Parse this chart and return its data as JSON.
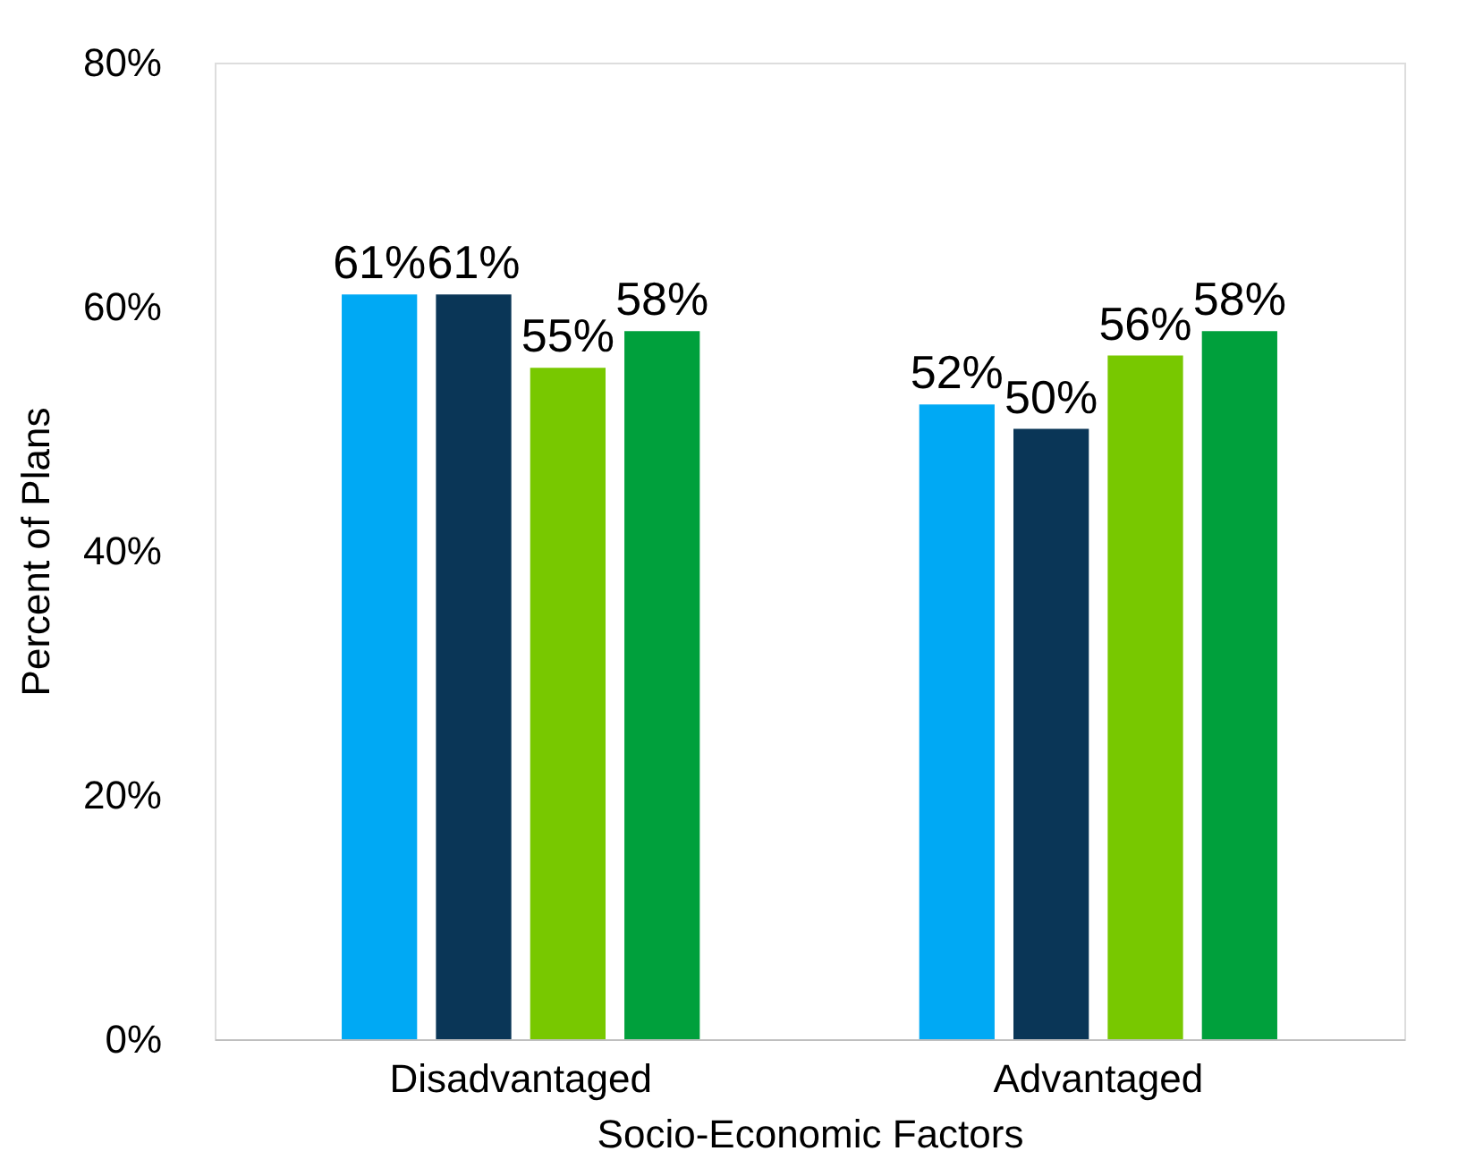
{
  "chart_data": {
    "type": "bar",
    "xlabel": "Socio-Economic Factors",
    "ylabel": "Percent of Plans",
    "categories": [
      "Disadvantaged",
      "Advantaged"
    ],
    "series": [
      {
        "color": "#00a9f4",
        "values": [
          61,
          52
        ],
        "value_labels": [
          "61%",
          "52%"
        ]
      },
      {
        "color": "#0a3657",
        "values": [
          61,
          50
        ],
        "value_labels": [
          "61%",
          "50%"
        ]
      },
      {
        "color": "#78c800",
        "values": [
          55,
          56
        ],
        "value_labels": [
          "55%",
          "56%"
        ]
      },
      {
        "color": "#00a03c",
        "values": [
          58,
          58
        ],
        "value_labels": [
          "58%",
          "58%"
        ]
      }
    ],
    "ylim": [
      0,
      80
    ],
    "yticks": [
      {
        "value": 0,
        "label": "0%"
      },
      {
        "value": 20,
        "label": "20%"
      },
      {
        "value": 40,
        "label": "40%"
      },
      {
        "value": 60,
        "label": "60%"
      },
      {
        "value": 80,
        "label": "80%"
      }
    ]
  }
}
